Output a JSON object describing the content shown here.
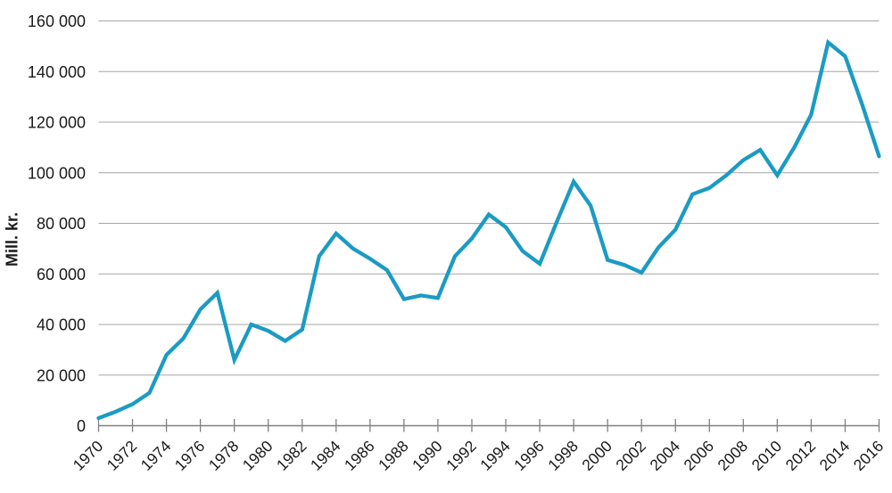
{
  "chart_data": {
    "type": "line",
    "title": "",
    "xlabel": "",
    "ylabel": "Mill. kr.",
    "x": [
      1970,
      1971,
      1972,
      1973,
      1974,
      1975,
      1976,
      1977,
      1978,
      1979,
      1980,
      1981,
      1982,
      1983,
      1984,
      1985,
      1986,
      1987,
      1988,
      1989,
      1990,
      1991,
      1992,
      1993,
      1994,
      1995,
      1996,
      1997,
      1998,
      1999,
      2000,
      2001,
      2002,
      2003,
      2004,
      2005,
      2006,
      2007,
      2008,
      2009,
      2010,
      2011,
      2012,
      2013,
      2014,
      2015,
      2016
    ],
    "values": [
      3000,
      5500,
      8500,
      13000,
      28000,
      34500,
      46000,
      52500,
      26000,
      40000,
      37500,
      33500,
      38000,
      67000,
      76000,
      70000,
      66000,
      61500,
      50000,
      51500,
      50500,
      67000,
      74000,
      83500,
      78500,
      69000,
      64000,
      80500,
      96500,
      87000,
      65500,
      63500,
      60500,
      70500,
      77500,
      91500,
      94000,
      99000,
      105000,
      109000,
      99000,
      110000,
      123000,
      151500,
      146000,
      127000,
      106500
    ],
    "ylim": [
      0,
      160000
    ],
    "yticks": [
      0,
      20000,
      40000,
      60000,
      80000,
      100000,
      120000,
      140000,
      160000
    ],
    "ytick_labels": [
      "0",
      "20 000",
      "40 000",
      "60 000",
      "80 000",
      "100 000",
      "120 000",
      "140 000",
      "160 000"
    ],
    "xticks": [
      1970,
      1972,
      1974,
      1976,
      1978,
      1980,
      1982,
      1984,
      1986,
      1988,
      1990,
      1992,
      1994,
      1996,
      1998,
      2000,
      2002,
      2004,
      2006,
      2008,
      2010,
      2012,
      2014,
      2016
    ],
    "xtick_labels": [
      "1970",
      "1972",
      "1974",
      "1976",
      "1978",
      "1980",
      "1982",
      "1984",
      "1986",
      "1988",
      "1990",
      "1992",
      "1994",
      "1996",
      "1998",
      "2000",
      "2002",
      "2004",
      "2006",
      "2008",
      "2010",
      "2012",
      "2014",
      "2016"
    ],
    "grid": "horizontal",
    "legend": "none",
    "line_color": "#1b9bc3",
    "grid_color": "#a6a6a6",
    "axis_color": "#808080",
    "text_color": "#1a1a1a",
    "background_color": "#ffffff"
  }
}
